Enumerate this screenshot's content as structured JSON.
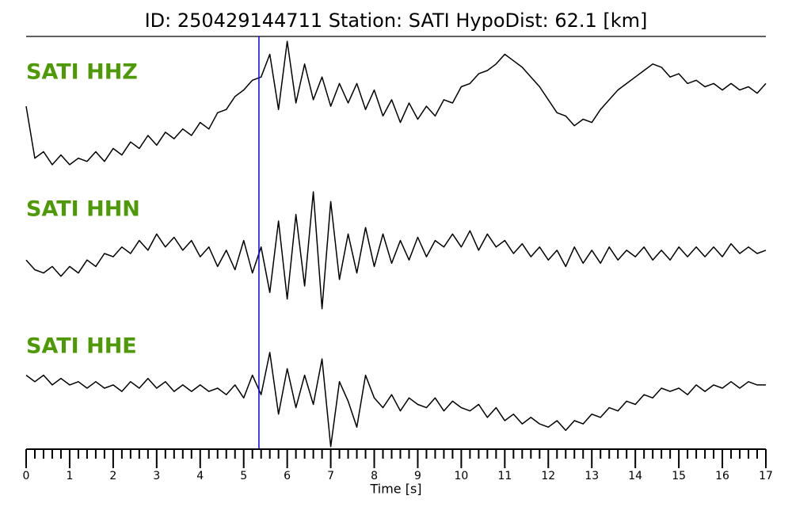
{
  "chart_data": {
    "type": "line",
    "title": "ID: 250429144711   Station: SATI   HypoDist:    62.1 [km]",
    "xlabel": "Time [s]",
    "xlim": [
      0,
      17
    ],
    "xticks": [
      0,
      1,
      2,
      3,
      4,
      5,
      6,
      7,
      8,
      9,
      10,
      11,
      12,
      13,
      14,
      15,
      16,
      17
    ],
    "minor_ticks_per_major": 5,
    "ylim": [
      -1,
      1
    ],
    "label_color": "#4e9a06",
    "pick_x": 5.35,
    "pick_color": "#0000ff",
    "x": [
      0,
      0.2,
      0.4,
      0.6,
      0.8,
      1,
      1.2,
      1.4,
      1.6,
      1.8,
      2,
      2.2,
      2.4,
      2.6,
      2.8,
      3,
      3.2,
      3.4,
      3.6,
      3.8,
      4,
      4.2,
      4.4,
      4.6,
      4.8,
      5,
      5.2,
      5.4,
      5.6,
      5.8,
      6,
      6.2,
      6.4,
      6.6,
      6.8,
      7,
      7.2,
      7.4,
      7.6,
      7.8,
      8,
      8.2,
      8.4,
      8.6,
      8.8,
      9,
      9.2,
      9.4,
      9.6,
      9.8,
      10,
      10.2,
      10.4,
      10.6,
      10.8,
      11,
      11.2,
      11.4,
      11.6,
      11.8,
      12,
      12.2,
      12.4,
      12.6,
      12.8,
      13,
      13.2,
      13.4,
      13.6,
      13.8,
      14,
      14.2,
      14.4,
      14.6,
      14.8,
      15,
      15.2,
      15.4,
      15.6,
      15.8,
      16,
      16.2,
      16.4,
      16.6,
      16.8,
      17
    ],
    "series": [
      {
        "name": "SATI HHZ",
        "color": "#000000",
        "values": [
          -0.05,
          -0.85,
          -0.75,
          -0.95,
          -0.8,
          -0.95,
          -0.85,
          -0.9,
          -0.75,
          -0.9,
          -0.7,
          -0.8,
          -0.6,
          -0.7,
          -0.5,
          -0.65,
          -0.45,
          -0.55,
          -0.4,
          -0.5,
          -0.3,
          -0.4,
          -0.15,
          -0.1,
          0.1,
          0.2,
          0.35,
          0.4,
          0.75,
          -0.1,
          0.95,
          0.0,
          0.6,
          0.05,
          0.4,
          -0.05,
          0.3,
          0.0,
          0.3,
          -0.1,
          0.2,
          -0.2,
          0.05,
          -0.3,
          0.0,
          -0.25,
          -0.05,
          -0.2,
          0.05,
          0.0,
          0.25,
          0.3,
          0.45,
          0.5,
          0.6,
          0.75,
          0.65,
          0.55,
          0.4,
          0.25,
          0.05,
          -0.15,
          -0.2,
          -0.35,
          -0.25,
          -0.3,
          -0.1,
          0.05,
          0.2,
          0.3,
          0.4,
          0.5,
          0.6,
          0.55,
          0.4,
          0.45,
          0.3,
          0.35,
          0.25,
          0.3,
          0.2,
          0.3,
          0.2,
          0.25,
          0.15,
          0.3
        ]
      },
      {
        "name": "SATI HHN",
        "color": "#000000",
        "values": [
          -0.1,
          -0.25,
          -0.3,
          -0.2,
          -0.35,
          -0.2,
          -0.3,
          -0.1,
          -0.2,
          0.0,
          -0.05,
          0.1,
          0.0,
          0.2,
          0.05,
          0.3,
          0.1,
          0.25,
          0.05,
          0.2,
          -0.05,
          0.1,
          -0.2,
          0.05,
          -0.25,
          0.2,
          -0.3,
          0.1,
          -0.6,
          0.5,
          -0.7,
          0.6,
          -0.5,
          0.95,
          -0.85,
          0.8,
          -0.4,
          0.3,
          -0.3,
          0.4,
          -0.2,
          0.3,
          -0.15,
          0.2,
          -0.1,
          0.25,
          -0.05,
          0.2,
          0.1,
          0.3,
          0.1,
          0.35,
          0.05,
          0.3,
          0.1,
          0.2,
          0.0,
          0.15,
          -0.05,
          0.1,
          -0.1,
          0.05,
          -0.2,
          0.1,
          -0.15,
          0.05,
          -0.15,
          0.1,
          -0.1,
          0.05,
          -0.05,
          0.1,
          -0.1,
          0.05,
          -0.1,
          0.1,
          -0.05,
          0.1,
          -0.05,
          0.1,
          -0.05,
          0.15,
          0.0,
          0.1,
          0.0,
          0.05
        ]
      },
      {
        "name": "SATI HHE",
        "color": "#000000",
        "values": [
          0.2,
          0.1,
          0.2,
          0.05,
          0.15,
          0.05,
          0.1,
          0.0,
          0.1,
          0.0,
          0.05,
          -0.05,
          0.1,
          0.0,
          0.15,
          0.0,
          0.1,
          -0.05,
          0.05,
          -0.05,
          0.05,
          -0.05,
          0.0,
          -0.1,
          0.05,
          -0.15,
          0.2,
          -0.1,
          0.55,
          -0.4,
          0.3,
          -0.3,
          0.2,
          -0.25,
          0.45,
          -0.9,
          0.1,
          -0.2,
          -0.6,
          0.2,
          -0.15,
          -0.3,
          -0.1,
          -0.35,
          -0.15,
          -0.25,
          -0.3,
          -0.15,
          -0.35,
          -0.2,
          -0.3,
          -0.35,
          -0.25,
          -0.45,
          -0.3,
          -0.5,
          -0.4,
          -0.55,
          -0.45,
          -0.55,
          -0.6,
          -0.5,
          -0.65,
          -0.5,
          -0.55,
          -0.4,
          -0.45,
          -0.3,
          -0.35,
          -0.2,
          -0.25,
          -0.1,
          -0.15,
          0.0,
          -0.05,
          0.0,
          -0.1,
          0.05,
          -0.05,
          0.05,
          0.0,
          0.1,
          0.0,
          0.1,
          0.05,
          0.05
        ]
      }
    ]
  }
}
